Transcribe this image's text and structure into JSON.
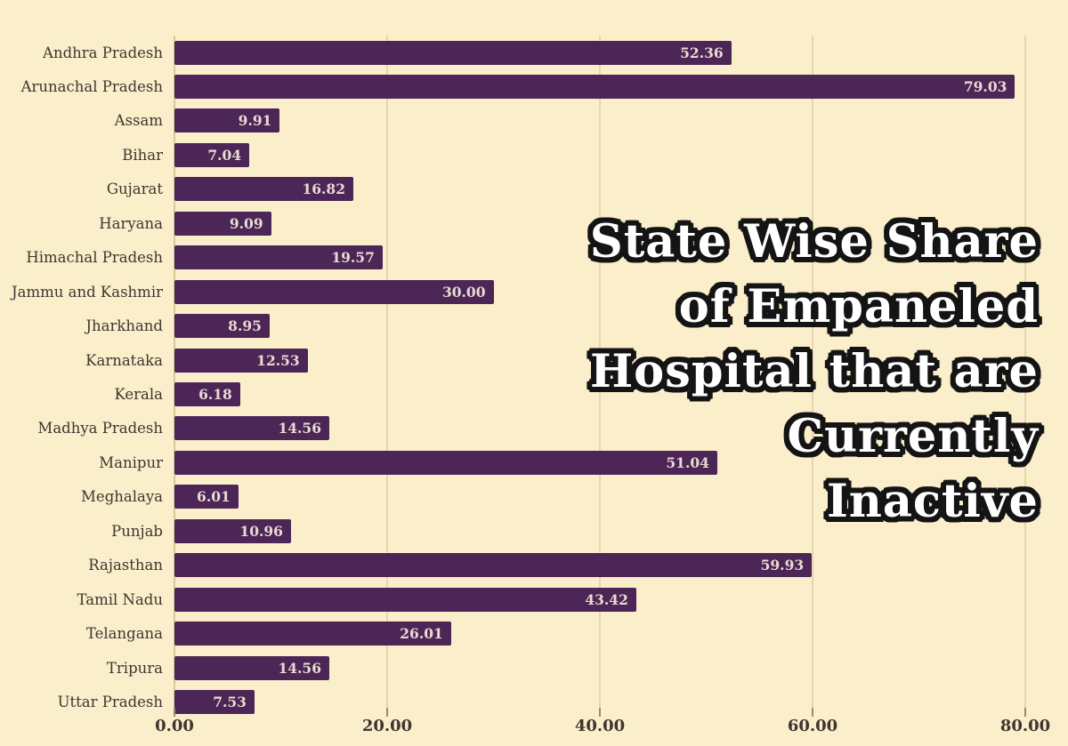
{
  "colors": {
    "background": "#fbeecb",
    "bar": "#4b2656",
    "value_label": "#e9dad2",
    "category_label": "#3f362e",
    "axis_tick_label": "#3f362e",
    "gridline": "#e6d6ae",
    "axis_line": "#d9c79e",
    "tick_mark": "#9a8a70",
    "title_fill": "#ffffff",
    "title_outline": "#141414"
  },
  "title": {
    "full": "State Wise Share of Empaneled Hospital that are Currently Inactive",
    "lines": [
      "State Wise Share",
      "of Empaneled",
      "Hospital that are",
      "Currently",
      "Inactive"
    ]
  },
  "x_axis": {
    "tick_labels": [
      "0.00",
      "20.00",
      "40.00",
      "60.00",
      "80.00"
    ],
    "tick_values": [
      0,
      20,
      40,
      60,
      80
    ],
    "min": 0,
    "max": 80
  },
  "chart_data": {
    "type": "bar",
    "orientation": "horizontal",
    "title": "State Wise Share of Empaneled Hospital that are Currently Inactive",
    "xlabel": "",
    "ylabel": "",
    "xlim": [
      0,
      80
    ],
    "grid": true,
    "legend": false,
    "categories": [
      "Andhra Pradesh",
      "Arunachal Pradesh",
      "Assam",
      "Bihar",
      "Gujarat",
      "Haryana",
      "Himachal Pradesh",
      "Jammu and Kashmir",
      "Jharkhand",
      "Karnataka",
      "Kerala",
      "Madhya Pradesh",
      "Manipur",
      "Meghalaya",
      "Punjab",
      "Rajasthan",
      "Tamil Nadu",
      "Telangana",
      "Tripura",
      "Uttar Pradesh"
    ],
    "values": [
      52.36,
      79.03,
      9.91,
      7.04,
      16.82,
      9.09,
      19.57,
      30.0,
      8.95,
      12.53,
      6.18,
      14.56,
      51.04,
      6.01,
      10.96,
      59.93,
      43.42,
      26.01,
      14.56,
      7.53
    ],
    "value_labels": [
      "52.36",
      "79.03",
      "9.91",
      "7.04",
      "16.82",
      "9.09",
      "19.57",
      "30.00",
      "8.95",
      "12.53",
      "6.18",
      "14.56",
      "51.04",
      "6.01",
      "10.96",
      "59.93",
      "43.42",
      "26.01",
      "14.56",
      "7.53"
    ]
  }
}
